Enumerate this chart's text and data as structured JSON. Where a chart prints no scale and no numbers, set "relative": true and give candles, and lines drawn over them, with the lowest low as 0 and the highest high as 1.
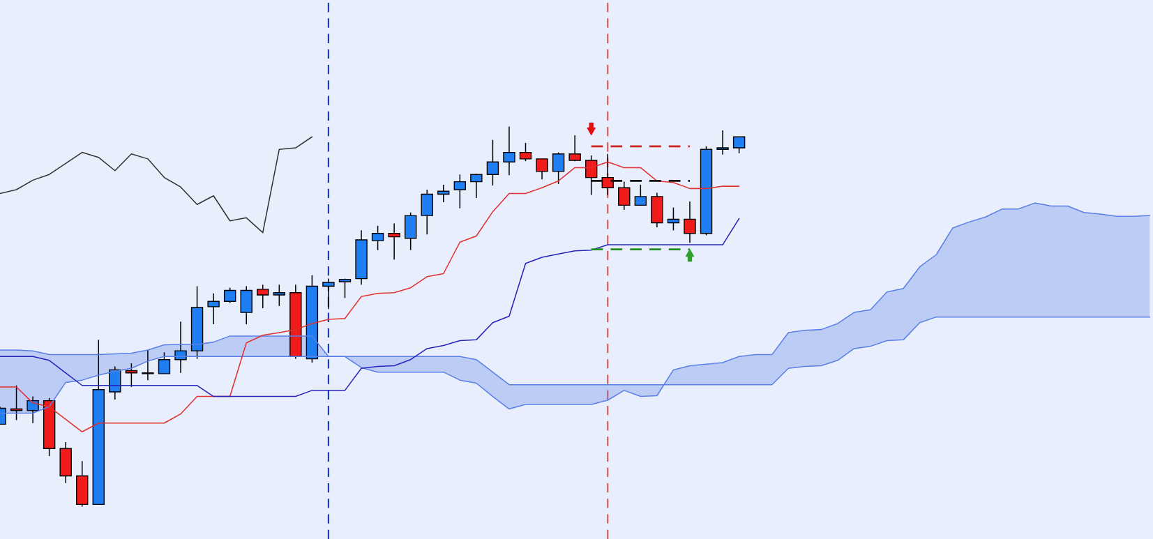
{
  "chart_data": {
    "type": "candlestick",
    "relative": true,
    "categories": [
      null,
      null,
      null,
      null,
      null,
      null,
      null,
      null,
      null,
      null,
      null,
      null,
      null,
      null,
      null,
      null,
      null,
      null,
      null,
      null,
      null,
      null,
      null,
      null,
      null,
      null,
      null,
      null,
      null,
      null,
      null,
      null,
      null,
      null,
      null,
      null,
      null,
      null,
      null,
      null,
      null,
      null,
      null,
      null,
      null,
      null,
      null,
      null,
      null,
      null,
      null,
      null,
      null,
      null,
      null,
      null,
      null,
      null,
      null,
      null,
      null,
      null,
      null,
      null,
      null,
      null,
      null,
      null,
      null,
      null,
      null
    ],
    "ohlc": [
      [
        0.217,
        0.263,
        0.217,
        0.259
      ],
      [
        0.257,
        0.319,
        0.228,
        0.253
      ],
      [
        0.253,
        0.29,
        0.22,
        0.279
      ],
      [
        0.279,
        0.286,
        0.133,
        0.153
      ],
      [
        0.153,
        0.17,
        0.062,
        0.081
      ],
      [
        0.081,
        0.12,
        0,
        0.006
      ],
      [
        0.006,
        0.439,
        0.006,
        0.308
      ],
      [
        0.302,
        0.369,
        0.282,
        0.36
      ],
      [
        0.358,
        0.377,
        0.315,
        0.352
      ],
      [
        0.352,
        0.412,
        0.333,
        0.35
      ],
      [
        0.35,
        0.406,
        0.35,
        0.387
      ],
      [
        0.387,
        0.487,
        0.352,
        0.41
      ],
      [
        0.41,
        0.58,
        0.389,
        0.524
      ],
      [
        0.526,
        0.561,
        0.48,
        0.54
      ],
      [
        0.54,
        0.576,
        0.536,
        0.569
      ],
      [
        0.511,
        0.58,
        0.48,
        0.569
      ],
      [
        0.572,
        0.584,
        0.522,
        0.557
      ],
      [
        0.557,
        0.584,
        0.528,
        0.563
      ],
      [
        0.563,
        0.584,
        0.389,
        0.395
      ],
      [
        0.389,
        0.609,
        0.379,
        0.58
      ],
      [
        0.58,
        0.6,
        0.52,
        0.59
      ],
      [
        0.592,
        0.6,
        0.549,
        0.598
      ],
      [
        0.6,
        0.727,
        0.584,
        0.702
      ],
      [
        0.7,
        0.739,
        0.675,
        0.719
      ],
      [
        0.719,
        0.745,
        0.65,
        0.71
      ],
      [
        0.706,
        0.774,
        0.675,
        0.766
      ],
      [
        0.766,
        0.834,
        0.716,
        0.822
      ],
      [
        0.822,
        0.847,
        0.801,
        0.83
      ],
      [
        0.834,
        0.874,
        0.785,
        0.855
      ],
      [
        0.855,
        0.876,
        0.812,
        0.874
      ],
      [
        0.874,
        0.965,
        0.845,
        0.907
      ],
      [
        0.907,
        1.0,
        0.872,
        0.932
      ],
      [
        0.932,
        0.957,
        0.909,
        0.915
      ],
      [
        0.915,
        0.915,
        0.861,
        0.882
      ],
      [
        0.882,
        0.932,
        0.849,
        0.928
      ],
      [
        0.928,
        0.977,
        0.909,
        0.911
      ],
      [
        0.911,
        0.924,
        0.82,
        0.866
      ],
      [
        0.866,
        0.928,
        0.82,
        0.839
      ],
      [
        0.839,
        0.855,
        0.781,
        0.793
      ],
      [
        0.793,
        0.847,
        0.793,
        0.816
      ],
      [
        0.816,
        0.826,
        0.735,
        0.747
      ],
      [
        0.747,
        0.787,
        0.727,
        0.756
      ],
      [
        0.756,
        0.803,
        0.694,
        0.719
      ],
      [
        0.719,
        0.948,
        0.714,
        0.94
      ],
      [
        0.94,
        0.99,
        0.926,
        0.944
      ],
      [
        0.944,
        0.973,
        0.93,
        0.973
      ],
      null,
      null,
      null,
      null,
      null,
      null,
      null,
      null,
      null,
      null,
      null,
      null,
      null,
      null,
      null,
      null,
      null,
      null,
      null,
      null,
      null,
      null,
      null,
      null,
      null
    ],
    "colors": [
      "#1e7ef2",
      "#f01c1c",
      "#1e7ef2",
      "#f01c1c",
      "#f01c1c",
      "#f01c1c",
      "#1e7ef2",
      "#1e7ef2",
      "#f01c1c",
      "#f01c1c",
      "#1e7ef2",
      "#1e7ef2",
      "#1e7ef2",
      "#1e7ef2",
      "#1e7ef2",
      "#1e7ef2",
      "#f01c1c",
      "#1e7ef2",
      "#f01c1c",
      "#1e7ef2",
      "#1e7ef2",
      "#1e7ef2",
      "#1e7ef2",
      "#1e7ef2",
      "#f01c1c",
      "#1e7ef2",
      "#1e7ef2",
      "#1e7ef2",
      "#1e7ef2",
      "#1e7ef2",
      "#1e7ef2",
      "#1e7ef2",
      "#f01c1c",
      "#f01c1c",
      "#1e7ef2",
      "#f01c1c",
      "#f01c1c",
      "#f01c1c",
      "#f01c1c",
      "#1e7ef2",
      "#f01c1c",
      "#1e7ef2",
      "#f01c1c",
      "#1e7ef2",
      "#1e7ef2",
      "#1e7ef2",
      null,
      null,
      null,
      null,
      null,
      null,
      null,
      null,
      null,
      null,
      null,
      null,
      null,
      null,
      null,
      null,
      null,
      null,
      null,
      null,
      null,
      null,
      null,
      null,
      null
    ],
    "series": [
      {
        "type": "line",
        "color": "#5a7fe6",
        "values": [
          0.412,
          0.412,
          0.41,
          0.4,
          0.4,
          0.4,
          0.4,
          0.402,
          0.404,
          0.412,
          0.426,
          0.427,
          0.427,
          0.433,
          0.449,
          0.449,
          0.449,
          0.449,
          0.449,
          0.449,
          0.395,
          0.395,
          0.395,
          0.395,
          0.395,
          0.395,
          0.395,
          0.395,
          0.395,
          0.387,
          0.354,
          0.321,
          0.321,
          0.321,
          0.321,
          0.321,
          0.321,
          0.321,
          0.321,
          0.321,
          0.321,
          0.321,
          0.321,
          0.321,
          0.321,
          0.321,
          0.321,
          0.321,
          0.364,
          0.369,
          0.371,
          0.385,
          0.416,
          0.422,
          0.437,
          0.439,
          0.484,
          0.499,
          0.499,
          0.499,
          0.499,
          0.499,
          0.499,
          0.499,
          0.499,
          0.499,
          0.499,
          0.499,
          0.499,
          0.499,
          0.499
        ]
      },
      {
        "type": "line",
        "color": "#5a7fe6",
        "values": [
          0.246,
          0.246,
          0.246,
          0.263,
          0.327,
          0.333,
          0.346,
          0.356,
          0.364,
          0.383,
          0.395,
          0.395,
          0.395,
          0.395,
          0.395,
          0.395,
          0.395,
          0.395,
          0.395,
          0.395,
          0.395,
          0.395,
          0.366,
          0.354,
          0.354,
          0.354,
          0.354,
          0.354,
          0.333,
          0.325,
          0.29,
          0.257,
          0.269,
          0.269,
          0.269,
          0.269,
          0.269,
          0.28,
          0.306,
          0.29,
          0.292,
          0.36,
          0.371,
          0.375,
          0.379,
          0.395,
          0.4,
          0.4,
          0.458,
          0.464,
          0.466,
          0.482,
          0.511,
          0.518,
          0.565,
          0.574,
          0.631,
          0.663,
          0.733,
          0.749,
          0.762,
          0.783,
          0.783,
          0.799,
          0.791,
          0.791,
          0.774,
          0.77,
          0.764,
          0.764,
          0.766
        ]
      },
      {
        "type": "line",
        "color": "#333333",
        "values": [
          0.824,
          0.834,
          0.859,
          0.874,
          0.903,
          0.932,
          0.919,
          0.884,
          0.928,
          0.915,
          0.866,
          0.841,
          0.795,
          0.818,
          0.752,
          0.76,
          0.721,
          0.94,
          0.944,
          0.973,
          null,
          null,
          null,
          null,
          null,
          null,
          null,
          null,
          null,
          null,
          null,
          null,
          null,
          null,
          null,
          null,
          null,
          null,
          null,
          null,
          null,
          null,
          null,
          null,
          null,
          null,
          null,
          null,
          null,
          null,
          null,
          null,
          null,
          null,
          null,
          null,
          null,
          null,
          null,
          null,
          null,
          null,
          null,
          null,
          null,
          null,
          null,
          null,
          null,
          null,
          null
        ]
      },
      {
        "type": "line",
        "color": "#e03030",
        "values": [
          0.315,
          0.315,
          0.273,
          0.263,
          0.23,
          0.197,
          0.22,
          0.22,
          0.22,
          0.22,
          0.22,
          0.244,
          0.29,
          0.29,
          0.29,
          0.431,
          0.451,
          0.458,
          0.466,
          0.482,
          0.493,
          0.495,
          0.553,
          0.561,
          0.563,
          0.576,
          0.605,
          0.613,
          0.696,
          0.712,
          0.776,
          0.824,
          0.824,
          0.839,
          0.857,
          0.892,
          0.892,
          0.907,
          0.892,
          0.892,
          0.857,
          0.853,
          0.837,
          0.837,
          0.843,
          0.843,
          null,
          null,
          null,
          null,
          null,
          null,
          null,
          null,
          null,
          null,
          null,
          null,
          null,
          null,
          null,
          null,
          null,
          null,
          null,
          null,
          null,
          null,
          null,
          null,
          null
        ]
      },
      {
        "type": "line",
        "color": "#2424bb",
        "values": [
          0.395,
          0.395,
          0.395,
          0.385,
          0.352,
          0.319,
          0.319,
          0.319,
          0.319,
          0.319,
          0.319,
          0.319,
          0.319,
          0.29,
          0.29,
          0.29,
          0.29,
          0.29,
          0.29,
          0.306,
          0.306,
          0.306,
          0.364,
          0.369,
          0.371,
          0.387,
          0.416,
          0.424,
          0.437,
          0.439,
          0.484,
          0.501,
          0.64,
          0.656,
          0.665,
          0.673,
          0.675,
          0.689,
          0.689,
          0.689,
          0.689,
          0.689,
          0.689,
          0.689,
          0.689,
          0.758,
          null,
          null,
          null,
          null,
          null,
          null,
          null,
          null,
          null,
          null,
          null,
          null,
          null,
          null,
          null,
          null,
          null,
          null,
          null,
          null,
          null,
          null,
          null,
          null,
          null
        ]
      },
      {
        "type": "line",
        "color": "#cc2222",
        "line_style": "dashed",
        "values": [
          null,
          null,
          null,
          null,
          null,
          null,
          null,
          null,
          null,
          null,
          null,
          null,
          null,
          null,
          null,
          null,
          null,
          null,
          null,
          null,
          null,
          null,
          null,
          null,
          null,
          null,
          null,
          null,
          null,
          null,
          null,
          null,
          null,
          null,
          null,
          null,
          0.948,
          0.948,
          0.948,
          0.948,
          0.948,
          0.948,
          0.948,
          null,
          null,
          null,
          null,
          null,
          null,
          null,
          null,
          null,
          null,
          null,
          null,
          null,
          null,
          null,
          null,
          null,
          null,
          null,
          null,
          null,
          null,
          null,
          null,
          null,
          null,
          null,
          null
        ]
      },
      {
        "type": "line",
        "color": "#111111",
        "line_style": "dashed",
        "values": [
          null,
          null,
          null,
          null,
          null,
          null,
          null,
          null,
          null,
          null,
          null,
          null,
          null,
          null,
          null,
          null,
          null,
          null,
          null,
          null,
          null,
          null,
          null,
          null,
          null,
          null,
          null,
          null,
          null,
          null,
          null,
          null,
          null,
          null,
          null,
          null,
          0.857,
          0.857,
          0.857,
          0.857,
          0.857,
          0.857,
          0.857,
          null,
          null,
          null,
          null,
          null,
          null,
          null,
          null,
          null,
          null,
          null,
          null,
          null,
          null,
          null,
          null,
          null,
          null,
          null,
          null,
          null,
          null,
          null,
          null,
          null,
          null,
          null,
          null
        ]
      },
      {
        "type": "line",
        "color": "#228b22",
        "line_style": "dashed",
        "values": [
          null,
          null,
          null,
          null,
          null,
          null,
          null,
          null,
          null,
          null,
          null,
          null,
          null,
          null,
          null,
          null,
          null,
          null,
          null,
          null,
          null,
          null,
          null,
          null,
          null,
          null,
          null,
          null,
          null,
          null,
          null,
          null,
          null,
          null,
          null,
          null,
          0.677,
          0.677,
          0.677,
          0.677,
          0.677,
          0.677,
          0.677,
          null,
          null,
          null,
          null,
          null,
          null,
          null,
          null,
          null,
          null,
          null,
          null,
          null,
          null,
          null,
          null,
          null,
          null,
          null,
          null,
          null,
          null,
          null,
          null,
          null,
          null,
          null,
          null
        ]
      },
      {
        "type": "scatter",
        "color": "#e01010",
        "values": [
          null,
          null,
          null,
          null,
          null,
          null,
          null,
          null,
          null,
          null,
          null,
          null,
          null,
          null,
          null,
          null,
          null,
          null,
          null,
          null,
          null,
          null,
          null,
          null,
          null,
          null,
          null,
          null,
          null,
          null,
          null,
          null,
          null,
          null,
          null,
          null,
          0.994,
          null,
          null,
          null,
          null,
          null,
          null,
          null,
          null,
          null,
          null,
          null,
          null,
          null,
          null,
          null,
          null,
          null,
          null,
          null,
          null,
          null,
          null,
          null,
          null,
          null,
          null,
          null,
          null,
          null,
          null,
          null,
          null,
          null,
          null
        ]
      },
      {
        "type": "scatter",
        "color": "#2ea02e",
        "values": [
          null,
          null,
          null,
          null,
          null,
          null,
          null,
          null,
          null,
          null,
          null,
          null,
          null,
          null,
          null,
          null,
          null,
          null,
          null,
          null,
          null,
          null,
          null,
          null,
          null,
          null,
          null,
          null,
          null,
          null,
          null,
          null,
          null,
          null,
          null,
          null,
          null,
          null,
          null,
          null,
          null,
          null,
          0.661,
          null,
          null,
          null,
          null,
          null,
          null,
          null,
          null,
          null,
          null,
          null,
          null,
          null,
          null,
          null,
          null,
          null,
          null,
          null,
          null,
          null,
          null,
          null,
          null,
          null,
          null,
          null,
          null
        ]
      }
    ]
  }
}
